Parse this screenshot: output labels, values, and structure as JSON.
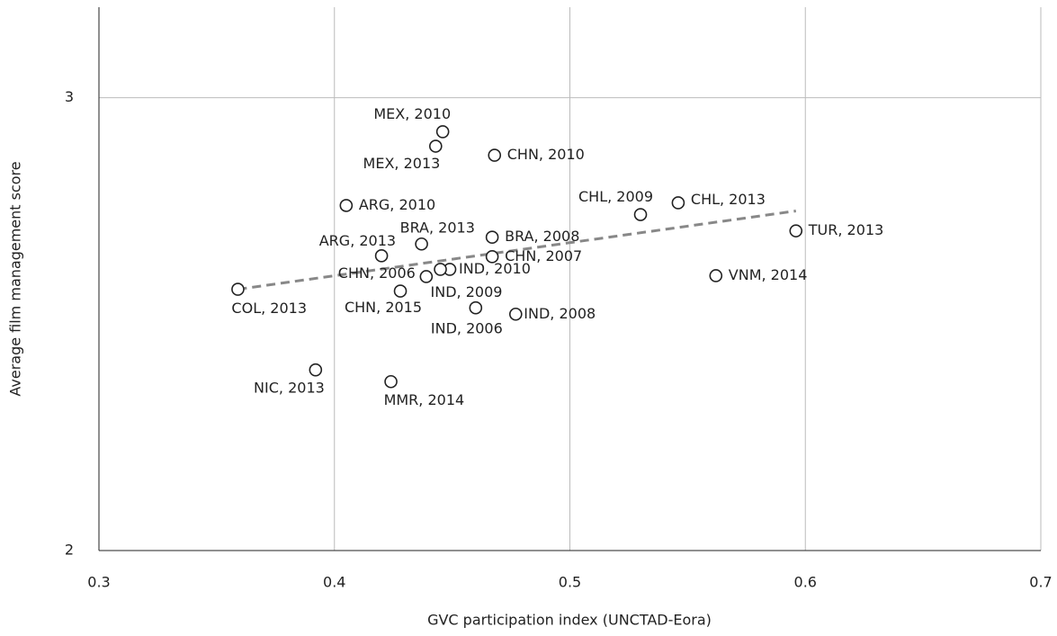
{
  "chart_data": {
    "type": "scatter",
    "x_label": "GVC participation index (UNCTAD-Eora)",
    "y_label": "Average film management score",
    "xlim": [
      0.3,
      0.7
    ],
    "xticks": [
      0.3,
      0.4,
      0.5,
      0.6,
      0.7
    ],
    "ylim": [
      2,
      3.2
    ],
    "yticks": [
      2,
      3
    ],
    "grid": true,
    "marker_color": "#222222",
    "labels": [
      "MEX, 2010",
      "MEX, 2013",
      "CHN, 2010",
      "ARG, 2010",
      "CHL, 2009",
      "CHL, 2013",
      "TUR, 2013",
      "BRA, 2013",
      "BRA, 2008",
      "ARG, 2013",
      "CHN, 2007",
      "CHN, 2006",
      "IND, 2010",
      "IND, 2009",
      "VNM, 2014",
      "COL, 2013",
      "CHN, 2015",
      "IND, 2006",
      "IND, 2008",
      "NIC, 2013",
      "MMR, 2014"
    ],
    "x": [
      0.446,
      0.443,
      0.468,
      0.405,
      0.53,
      0.546,
      0.596,
      0.437,
      0.467,
      0.42,
      0.467,
      0.439,
      0.449,
      0.445,
      0.562,
      0.359,
      0.428,
      0.46,
      0.477,
      0.392,
      0.424
    ],
    "y": [
      2.925,
      2.893,
      2.873,
      2.762,
      2.742,
      2.768,
      2.706,
      2.677,
      2.692,
      2.651,
      2.649,
      2.605,
      2.621,
      2.621,
      2.607,
      2.577,
      2.573,
      2.536,
      2.522,
      2.399,
      2.373
    ],
    "trendline": {
      "color": "#888888",
      "x": [
        0.359,
        0.596
      ],
      "y": [
        2.577,
        2.75
      ]
    }
  }
}
